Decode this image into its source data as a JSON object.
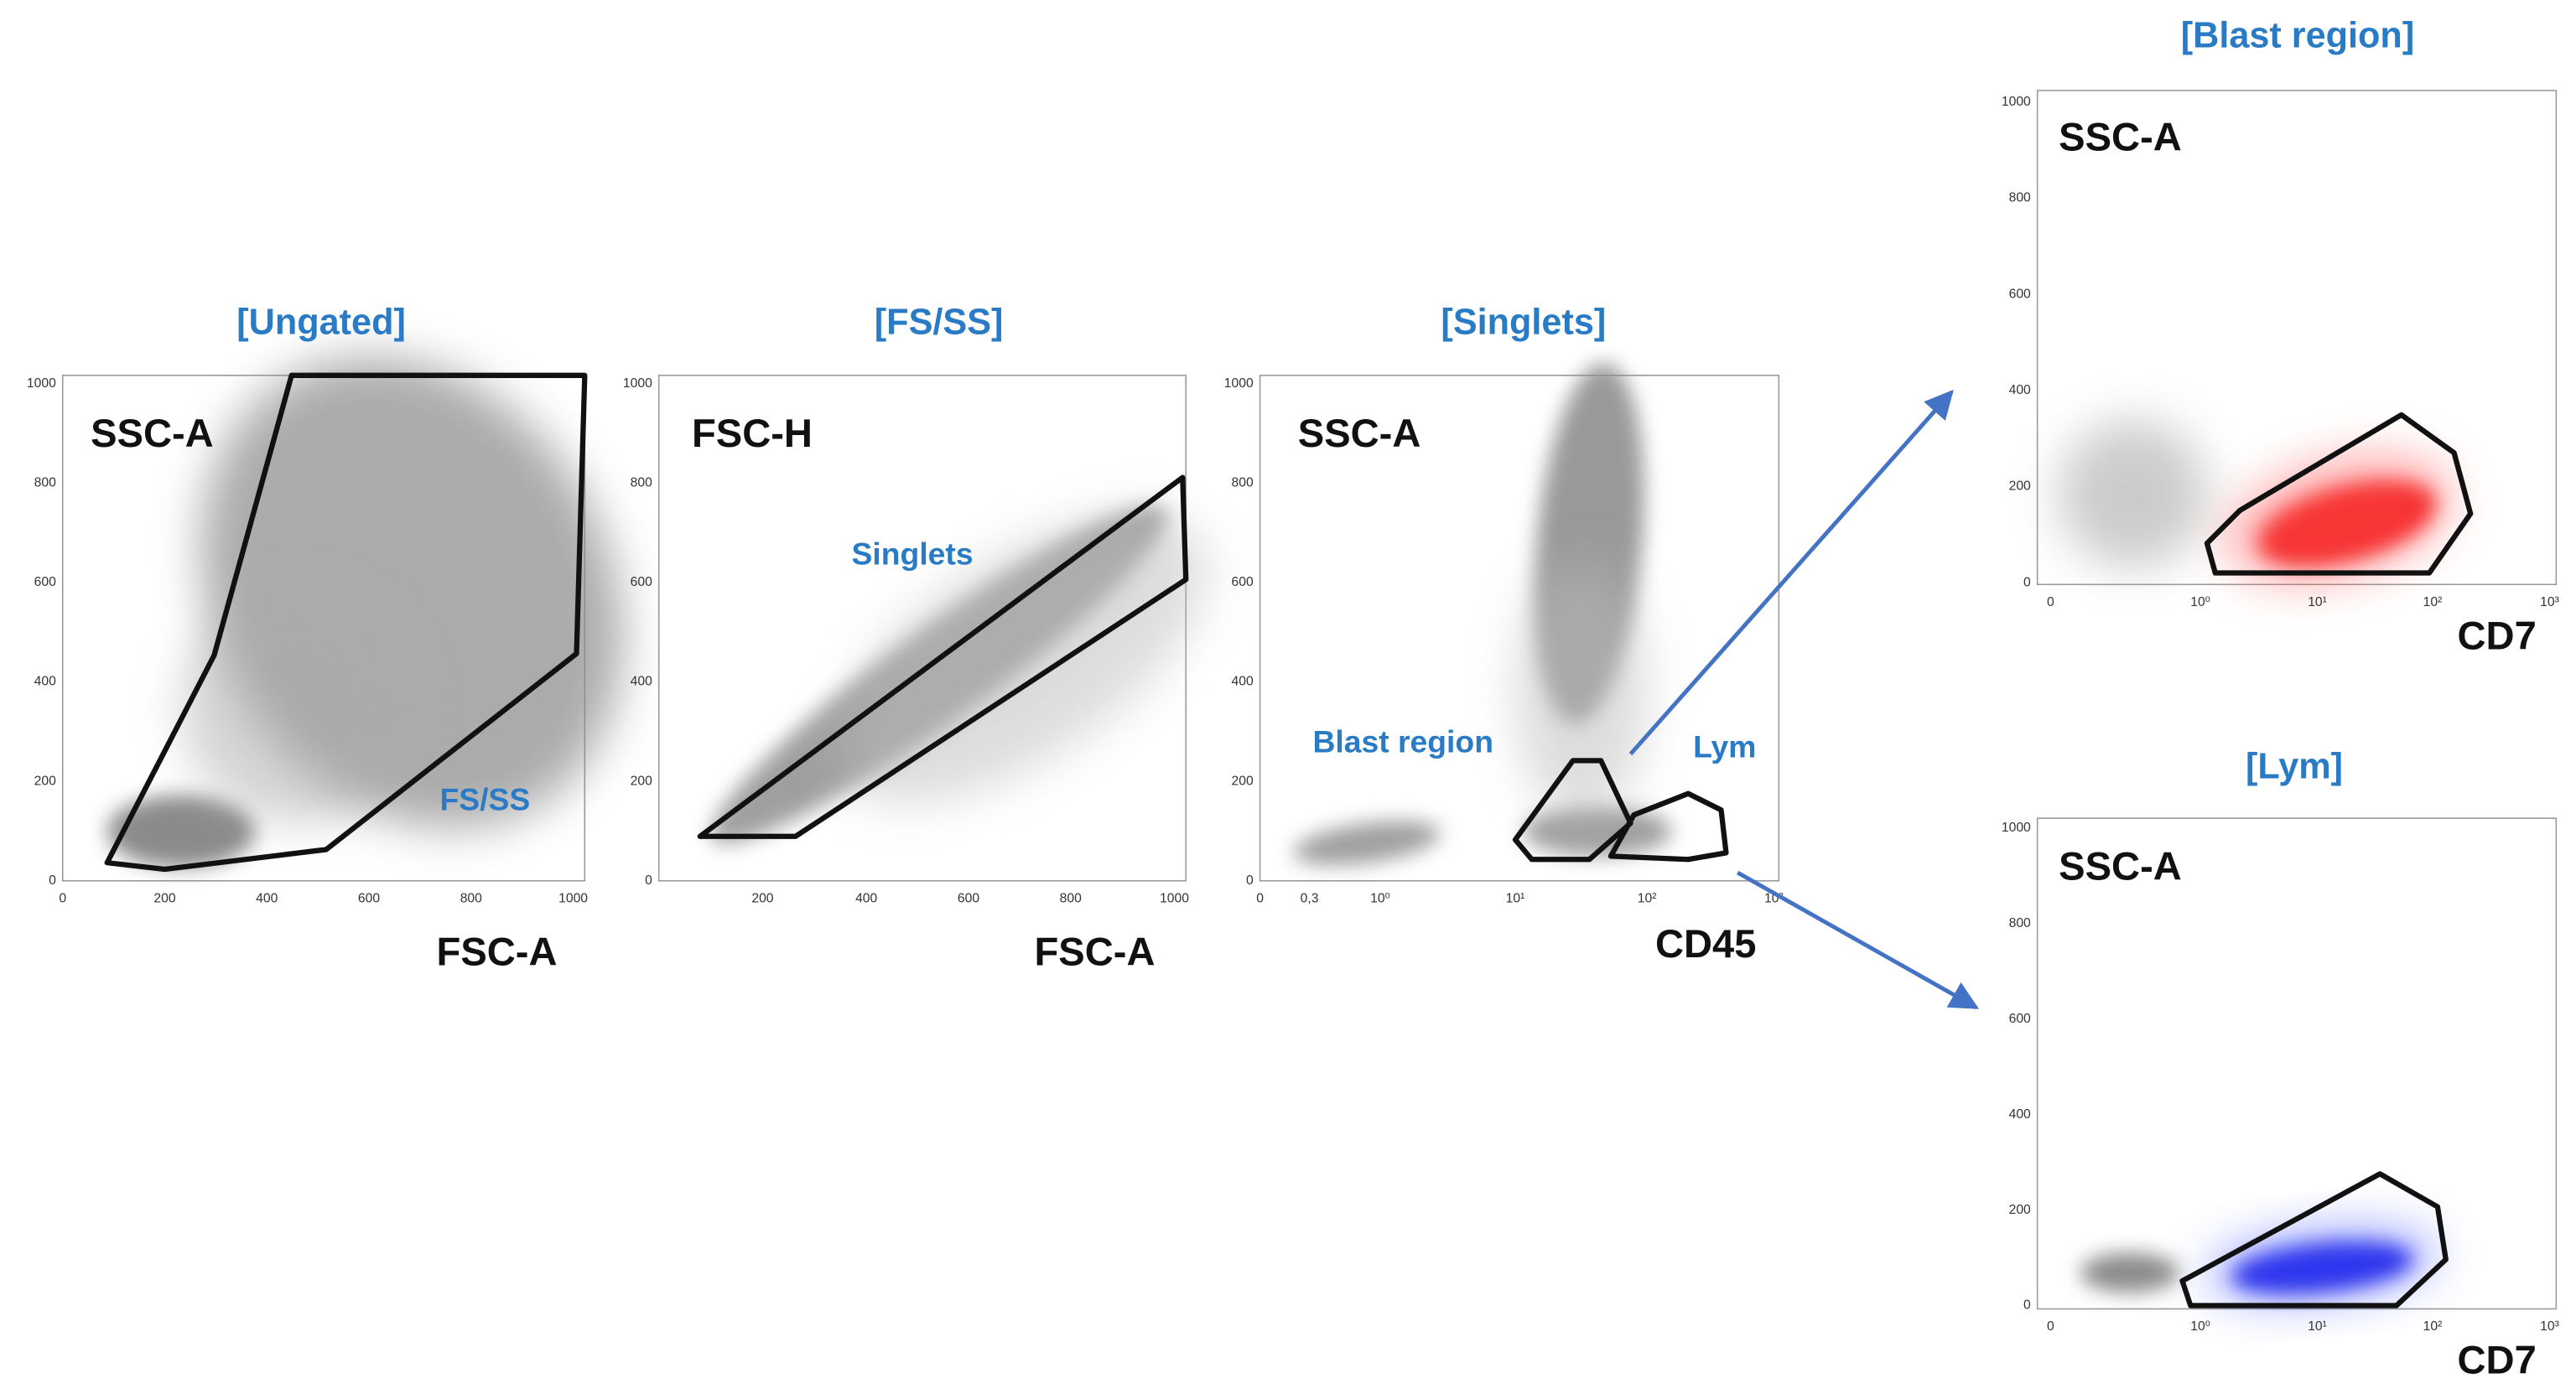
{
  "panels": [
    {
      "title": "[Ungated]",
      "y_axis_label": "SSC-A",
      "x_axis_label": "FSC-A",
      "gate_labels": [
        "FS/SS"
      ],
      "yticks": [
        0,
        200,
        400,
        600,
        800,
        1000
      ],
      "xticks": [
        0,
        200,
        400,
        600,
        800,
        1000
      ]
    },
    {
      "title": "[FS/SS]",
      "y_axis_label": "FSC-H",
      "x_axis_label": "FSC-A",
      "gate_labels": [
        "Singlets"
      ],
      "yticks": [
        0,
        200,
        400,
        600,
        800,
        1000
      ],
      "xticks": [
        200,
        400,
        600,
        800,
        1000
      ]
    },
    {
      "title": "[Singlets]",
      "y_axis_label": "SSC-A",
      "x_axis_label": "CD45",
      "gate_labels": [
        "Blast region",
        "Lym"
      ],
      "yticks": [
        0,
        200,
        400,
        600,
        800,
        1000
      ],
      "xticks": [
        "0",
        "0,3",
        "10⁰",
        "10¹",
        "10²",
        "10³"
      ]
    },
    {
      "title": "[Blast region]",
      "y_axis_label": "SSC-A",
      "x_axis_label": "CD7",
      "gate_labels": [],
      "yticks": [
        0,
        200,
        400,
        600,
        800,
        1000
      ],
      "xticks": [
        "0",
        "10⁰",
        "10¹",
        "10²",
        "10³"
      ]
    },
    {
      "title": "[Lym]",
      "y_axis_label": "SSC-A",
      "x_axis_label": "CD7",
      "gate_labels": [],
      "yticks": [
        0,
        200,
        400,
        600,
        800,
        1000
      ],
      "xticks": [
        "0",
        "10⁰",
        "10¹",
        "10²",
        "10³"
      ]
    }
  ]
}
